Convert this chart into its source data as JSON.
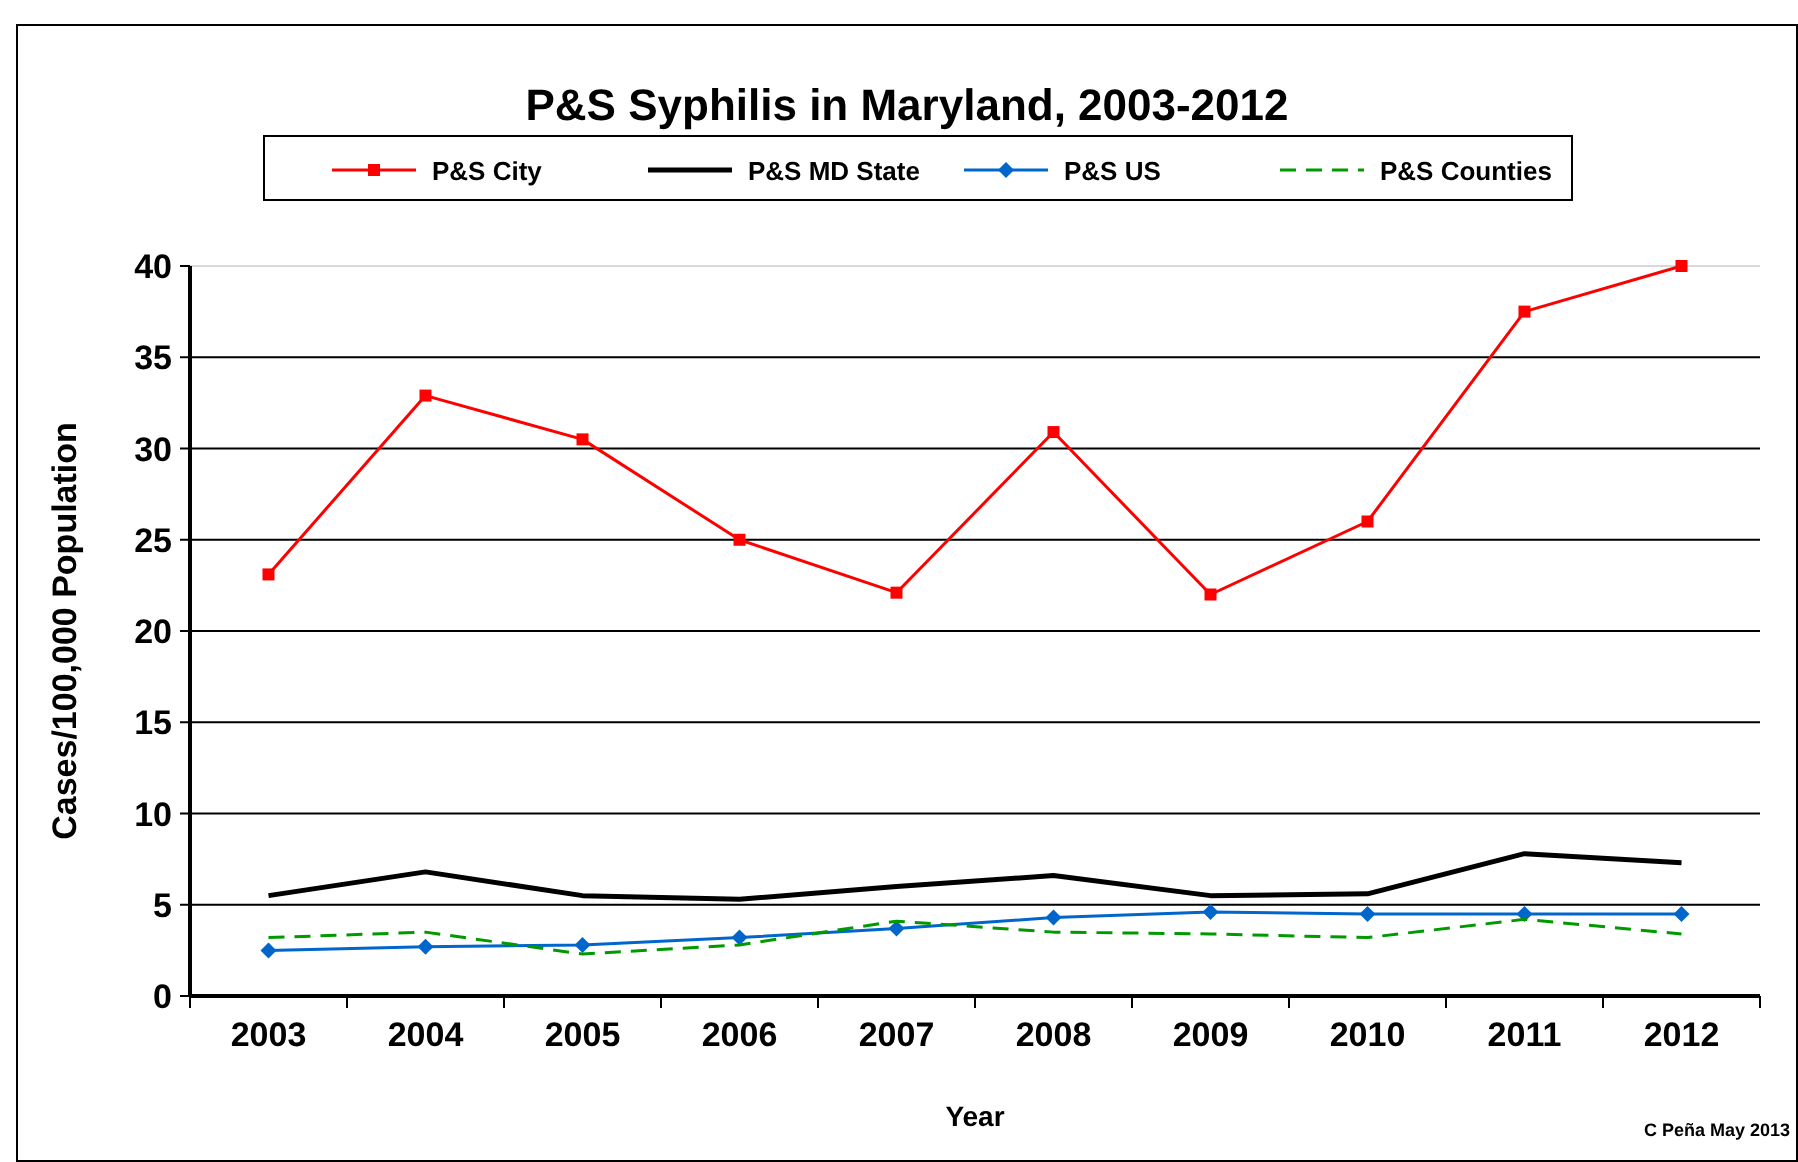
{
  "chart_data": {
    "type": "line",
    "title": "P&S Syphilis in Maryland, 2003-2012",
    "xlabel": "Year",
    "ylabel": "Cases/100,000 Population",
    "annotations": [
      "C Peña May 2013"
    ],
    "categories": [
      "2003",
      "2004",
      "2005",
      "2006",
      "2007",
      "2008",
      "2009",
      "2010",
      "2011",
      "2012"
    ],
    "series": [
      {
        "name": "P&S City",
        "color": "#ff0000",
        "marker": "square",
        "line_style": "solid",
        "values": [
          23.1,
          32.9,
          30.5,
          25.0,
          22.1,
          30.9,
          22.0,
          26.0,
          37.5,
          40
        ]
      },
      {
        "name": "P&S MD State",
        "color": "#000000",
        "marker": "none",
        "line_style": "solid",
        "values": [
          5.5,
          6.8,
          5.5,
          5.3,
          6.0,
          6.6,
          5.5,
          5.6,
          7.8,
          7.3
        ]
      },
      {
        "name": "P&S US",
        "color": "#0066cc",
        "marker": "diamond",
        "line_style": "solid",
        "values": [
          2.5,
          2.7,
          2.8,
          3.2,
          3.7,
          4.3,
          4.6,
          4.5,
          4.5,
          4.5
        ]
      },
      {
        "name": "P&S Counties",
        "color": "#009900",
        "marker": "none",
        "line_style": "dashed",
        "values": [
          3.2,
          3.5,
          2.3,
          2.8,
          4.1,
          3.5,
          3.4,
          3.2,
          4.2,
          3.4
        ]
      }
    ],
    "ylim": [
      0,
      40
    ],
    "yticks": [
      0,
      5,
      10,
      15,
      20,
      25,
      30,
      35,
      40
    ],
    "grid": "y",
    "legend": "top"
  }
}
